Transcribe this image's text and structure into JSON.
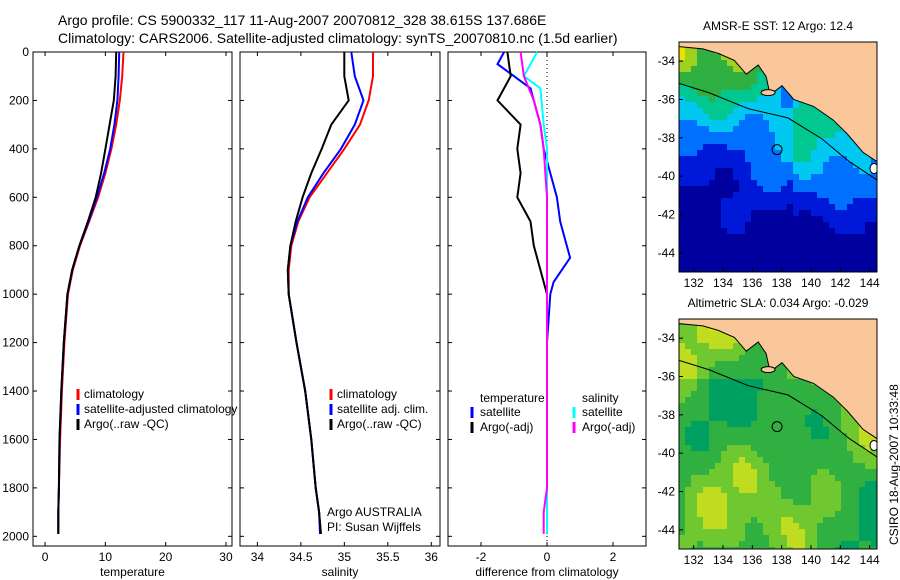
{
  "header": {
    "line1": "Argo profile: CS 5900332_117 11-Aug-2007 20070812_328 38.615S 137.686E",
    "line2": "Climatology: CARS2006. Satellite-adjusted climatology: synTS_20070810.nc (1.5d earlier)"
  },
  "credit": "CSIRO 18-Aug-2007 10:33:48",
  "colors": {
    "climatology": "#ff0000",
    "satellite": "#0000ff",
    "argo": "#000000",
    "sal_satellite": "#00ffff",
    "sal_argo": "#ff00ff",
    "land": "#f9c79a"
  },
  "chart_data": [
    {
      "type": "line",
      "xlabel": "temperature",
      "ylabel": "",
      "xlim": [
        -2,
        31
      ],
      "ylim": [
        2040,
        0
      ],
      "xticks": [
        0,
        10,
        20,
        30
      ],
      "yticks": [
        0,
        200,
        400,
        600,
        800,
        1000,
        1200,
        1400,
        1600,
        1800,
        2000
      ],
      "legend": [
        "climatology",
        "satellite-adjusted climatology",
        "Argo(..raw -QC)"
      ],
      "legend_placement": "bottom-right",
      "series": [
        {
          "name": "climatology",
          "color": "#ff0000",
          "x": [
            13.0,
            12.8,
            12.4,
            11.8,
            11.0,
            10.0,
            8.8,
            7.3,
            5.8,
            4.6,
            3.8,
            3.2,
            2.8,
            2.5,
            2.3,
            2.2,
            2.2
          ],
          "y": [
            0,
            100,
            200,
            300,
            400,
            500,
            600,
            700,
            800,
            900,
            1000,
            1200,
            1400,
            1600,
            1800,
            1900,
            1990
          ]
        },
        {
          "name": "satellite-adjusted climatology",
          "color": "#0000ff",
          "x": [
            12.3,
            12.2,
            12.0,
            11.5,
            10.8,
            9.8,
            8.6,
            7.2,
            5.7,
            4.5,
            3.7,
            3.1,
            2.7,
            2.4,
            2.3,
            2.2,
            2.2
          ],
          "y": [
            0,
            100,
            200,
            300,
            400,
            500,
            600,
            700,
            800,
            900,
            1000,
            1200,
            1400,
            1600,
            1800,
            1900,
            1990
          ]
        },
        {
          "name": "Argo(..raw -QC)",
          "color": "#000000",
          "x": [
            11.8,
            11.7,
            11.4,
            10.7,
            10.0,
            9.3,
            8.4,
            7.1,
            5.7,
            4.5,
            3.7,
            3.1,
            2.7,
            2.4,
            2.3,
            2.2,
            2.2
          ],
          "y": [
            0,
            100,
            200,
            300,
            400,
            500,
            600,
            700,
            800,
            900,
            1000,
            1200,
            1400,
            1600,
            1800,
            1900,
            1990
          ]
        }
      ]
    },
    {
      "type": "line",
      "xlabel": "salinity",
      "ylabel": "",
      "xlim": [
        33.8,
        36.1
      ],
      "ylim": [
        2040,
        0
      ],
      "xticks": [
        34,
        34.5,
        35,
        35.5,
        36
      ],
      "yticks": [
        0,
        200,
        400,
        600,
        800,
        1000,
        1200,
        1400,
        1600,
        1800,
        2000
      ],
      "legend": [
        "climatology",
        "satellite adj. clim.",
        "Argo(..raw -QC)"
      ],
      "legend_placement": "bottom-right",
      "annotation": [
        "Argo AUSTRALIA",
        "PI: Susan Wijffels"
      ],
      "series": [
        {
          "name": "climatology",
          "color": "#ff0000",
          "x": [
            35.33,
            35.33,
            35.28,
            35.18,
            35.0,
            34.8,
            34.6,
            34.47,
            34.39,
            34.36,
            34.36,
            34.45,
            34.55,
            34.62,
            34.67,
            34.71,
            34.73
          ],
          "y": [
            0,
            100,
            200,
            300,
            400,
            500,
            600,
            700,
            800,
            900,
            1000,
            1200,
            1400,
            1600,
            1800,
            1900,
            1990
          ]
        },
        {
          "name": "satellite adj. clim.",
          "color": "#0000ff",
          "x": [
            35.08,
            35.12,
            35.22,
            35.12,
            34.96,
            34.76,
            34.58,
            34.46,
            34.38,
            34.35,
            34.36,
            34.45,
            34.55,
            34.62,
            34.67,
            34.71,
            34.72
          ],
          "y": [
            0,
            100,
            200,
            300,
            400,
            500,
            600,
            700,
            800,
            900,
            1000,
            1200,
            1400,
            1600,
            1800,
            1900,
            1990
          ]
        },
        {
          "name": "Argo(..raw -QC)",
          "color": "#000000",
          "x": [
            35.0,
            35.0,
            35.05,
            34.85,
            34.74,
            34.62,
            34.52,
            34.44,
            34.38,
            34.35,
            34.36,
            34.45,
            34.55,
            34.62,
            34.67,
            34.71,
            34.73
          ],
          "y": [
            0,
            100,
            200,
            300,
            400,
            500,
            600,
            700,
            800,
            900,
            1000,
            1200,
            1400,
            1600,
            1800,
            1900,
            1990
          ]
        }
      ]
    },
    {
      "type": "line",
      "xlabel": "difference from climatology",
      "ylabel": "",
      "xlim": [
        -3,
        3
      ],
      "ylim": [
        2040,
        0
      ],
      "xticks": [
        -2,
        0,
        2
      ],
      "yticks": [
        0,
        200,
        400,
        600,
        800,
        1000,
        1200,
        1400,
        1600,
        1800,
        2000
      ],
      "legend_groups": [
        {
          "title": "temperature",
          "entries": [
            "satellite",
            "Argo(-adj)"
          ]
        },
        {
          "title": "salinity",
          "entries": [
            "satellite",
            "Argo(-adj)"
          ]
        }
      ],
      "legend_placement": "bottom",
      "series": [
        {
          "name": "temperature satellite",
          "color": "#0000ff",
          "x": [
            -1.3,
            -1.5,
            -0.5,
            -0.2,
            -0.1,
            0.1,
            0.3,
            0.4,
            0.7,
            0.2,
            0.1,
            0.0,
            0.0,
            0.0,
            0.0,
            0.0,
            0.0
          ],
          "y": [
            0,
            50,
            150,
            300,
            400,
            500,
            600,
            700,
            850,
            950,
            1000,
            1200,
            1400,
            1600,
            1800,
            1900,
            1990
          ]
        },
        {
          "name": "temperature Argo(-adj)",
          "color": "#000000",
          "x": [
            -1.2,
            -1.1,
            -1.5,
            -0.8,
            -0.9,
            -0.8,
            -0.9,
            -0.5,
            -0.4,
            -0.2,
            0.0,
            0.0,
            0.0,
            0.0,
            0.0,
            0.0,
            0.0
          ],
          "y": [
            0,
            100,
            200,
            300,
            400,
            500,
            600,
            700,
            800,
            900,
            1000,
            1200,
            1400,
            1600,
            1800,
            1900,
            1990
          ]
        },
        {
          "name": "salinity satellite",
          "color": "#00ffff",
          "x": [
            -0.3,
            -0.7,
            -0.2,
            -0.1,
            0.0,
            0.0,
            0.0,
            0.0,
            0.0,
            0.0,
            0.0,
            0.0,
            0.0,
            0.0,
            0.0
          ],
          "y": [
            0,
            100,
            150,
            300,
            400,
            600,
            800,
            1000,
            1200,
            1400,
            1500,
            1600,
            1800,
            1900,
            1990
          ]
        },
        {
          "name": "salinity Argo(-adj)",
          "color": "#ff00ff",
          "x": [
            -0.8,
            -0.7,
            -0.4,
            -0.2,
            -0.1,
            0.0,
            0.0,
            0.0,
            0.0,
            0.0,
            0.0,
            0.0,
            -0.1,
            -0.1
          ],
          "y": [
            0,
            100,
            200,
            300,
            400,
            600,
            800,
            1000,
            1200,
            1400,
            1600,
            1800,
            1900,
            1990
          ]
        }
      ]
    },
    {
      "type": "heatmap",
      "title": "AMSR-E SST: 12 Argo: 12.4",
      "xlim": [
        131,
        144.5
      ],
      "ylim": [
        -45,
        -33
      ],
      "xticks": [
        132,
        134,
        136,
        138,
        140,
        142,
        144
      ],
      "yticks": [
        -34,
        -36,
        -38,
        -40,
        -42,
        -44
      ],
      "marker": {
        "lon": 137.686,
        "lat": -38.615
      }
    },
    {
      "type": "heatmap",
      "title": "Altimetric SLA: 0.034 Argo: -0.029",
      "xlim": [
        131,
        144.5
      ],
      "ylim": [
        -45,
        -33
      ],
      "xticks": [
        132,
        134,
        136,
        138,
        140,
        142,
        144
      ],
      "yticks": [
        -34,
        -36,
        -38,
        -40,
        -42,
        -44
      ],
      "marker": {
        "lon": 137.686,
        "lat": -38.615
      }
    }
  ]
}
